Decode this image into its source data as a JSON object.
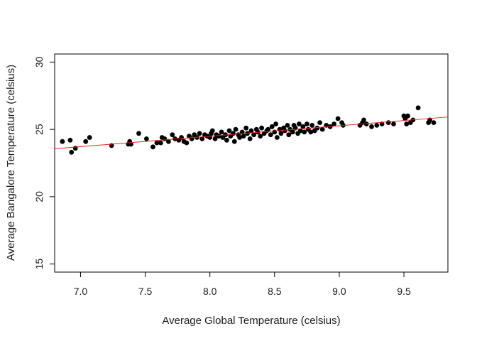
{
  "chart_data": {
    "type": "scatter",
    "xlabel": "Average Global Temperature (celsius)",
    "ylabel": "Average Bangalore Temperature (celsius)",
    "xlim": [
      6.8,
      9.84
    ],
    "ylim": [
      14.4,
      30.6
    ],
    "xticks": [
      7.0,
      7.5,
      8.0,
      8.5,
      9.0,
      9.5
    ],
    "xtick_labels": [
      "7.0",
      "7.5",
      "8.0",
      "8.5",
      "9.0",
      "9.5"
    ],
    "yticks": [
      15,
      20,
      25,
      30
    ],
    "ytick_labels": [
      "15",
      "20",
      "25",
      "30"
    ],
    "grid": false,
    "point_color": "#000000",
    "fit_line": {
      "color": "#e8201c",
      "x": [
        6.8,
        9.84
      ],
      "y": [
        23.56,
        25.92
      ]
    },
    "series": [
      {
        "points": [
          [
            6.86,
            24.1
          ],
          [
            6.92,
            24.2
          ],
          [
            6.93,
            23.3
          ],
          [
            6.96,
            23.6
          ],
          [
            7.04,
            24.1
          ],
          [
            7.07,
            24.4
          ],
          [
            7.24,
            23.8
          ],
          [
            7.37,
            23.9
          ],
          [
            7.38,
            24.1
          ],
          [
            7.39,
            23.9
          ],
          [
            7.45,
            24.7
          ],
          [
            7.51,
            24.3
          ],
          [
            7.56,
            23.7
          ],
          [
            7.59,
            24.0
          ],
          [
            7.62,
            24.0
          ],
          [
            7.63,
            24.4
          ],
          [
            7.65,
            24.3
          ],
          [
            7.68,
            24.1
          ],
          [
            7.71,
            24.6
          ],
          [
            7.73,
            24.3
          ],
          [
            7.76,
            24.2
          ],
          [
            7.78,
            24.4
          ],
          [
            7.8,
            24.1
          ],
          [
            7.82,
            24.0
          ],
          [
            7.84,
            24.5
          ],
          [
            7.86,
            24.3
          ],
          [
            7.88,
            24.6
          ],
          [
            7.9,
            24.4
          ],
          [
            7.92,
            24.7
          ],
          [
            7.94,
            24.3
          ],
          [
            7.96,
            24.6
          ],
          [
            7.98,
            24.5
          ],
          [
            8.0,
            24.4
          ],
          [
            8.01,
            24.7
          ],
          [
            8.02,
            24.9
          ],
          [
            8.04,
            24.3
          ],
          [
            8.05,
            24.6
          ],
          [
            8.07,
            24.5
          ],
          [
            8.09,
            24.8
          ],
          [
            8.1,
            24.4
          ],
          [
            8.12,
            24.6
          ],
          [
            8.13,
            24.2
          ],
          [
            8.15,
            24.9
          ],
          [
            8.16,
            24.5
          ],
          [
            8.18,
            24.7
          ],
          [
            8.19,
            24.1
          ],
          [
            8.2,
            25.0
          ],
          [
            8.22,
            24.6
          ],
          [
            8.23,
            24.4
          ],
          [
            8.25,
            24.8
          ],
          [
            8.26,
            24.5
          ],
          [
            8.28,
            25.1
          ],
          [
            8.29,
            24.7
          ],
          [
            8.31,
            24.3
          ],
          [
            8.32,
            24.9
          ],
          [
            8.34,
            24.6
          ],
          [
            8.36,
            25.0
          ],
          [
            8.37,
            24.8
          ],
          [
            8.39,
            24.5
          ],
          [
            8.4,
            25.1
          ],
          [
            8.42,
            24.7
          ],
          [
            8.44,
            24.9
          ],
          [
            8.45,
            25.0
          ],
          [
            8.47,
            24.6
          ],
          [
            8.48,
            25.2
          ],
          [
            8.5,
            24.8
          ],
          [
            8.51,
            25.4
          ],
          [
            8.52,
            24.4
          ],
          [
            8.54,
            25.0
          ],
          [
            8.55,
            24.7
          ],
          [
            8.57,
            25.1
          ],
          [
            8.58,
            24.9
          ],
          [
            8.6,
            25.3
          ],
          [
            8.61,
            24.6
          ],
          [
            8.62,
            25.0
          ],
          [
            8.64,
            24.8
          ],
          [
            8.65,
            25.3
          ],
          [
            8.66,
            25.1
          ],
          [
            8.68,
            24.7
          ],
          [
            8.69,
            25.4
          ],
          [
            8.7,
            24.9
          ],
          [
            8.72,
            25.2
          ],
          [
            8.73,
            24.8
          ],
          [
            8.75,
            25.4
          ],
          [
            8.76,
            25.0
          ],
          [
            8.78,
            24.8
          ],
          [
            8.79,
            25.3
          ],
          [
            8.81,
            24.9
          ],
          [
            8.83,
            25.1
          ],
          [
            8.85,
            25.5
          ],
          [
            8.87,
            25.0
          ],
          [
            8.9,
            25.3
          ],
          [
            8.93,
            25.2
          ],
          [
            8.96,
            25.4
          ],
          [
            8.99,
            25.8
          ],
          [
            9.02,
            25.5
          ],
          [
            9.03,
            25.3
          ],
          [
            9.16,
            25.3
          ],
          [
            9.18,
            25.5
          ],
          [
            9.19,
            25.7
          ],
          [
            9.21,
            25.4
          ],
          [
            9.25,
            25.2
          ],
          [
            9.29,
            25.3
          ],
          [
            9.33,
            25.4
          ],
          [
            9.38,
            25.5
          ],
          [
            9.42,
            25.4
          ],
          [
            9.5,
            26.0
          ],
          [
            9.51,
            25.8
          ],
          [
            9.52,
            25.4
          ],
          [
            9.53,
            26.0
          ],
          [
            9.55,
            25.5
          ],
          [
            9.57,
            25.7
          ],
          [
            9.61,
            26.6
          ],
          [
            9.69,
            25.5
          ],
          [
            9.7,
            25.7
          ],
          [
            9.73,
            25.5
          ]
        ]
      }
    ]
  }
}
